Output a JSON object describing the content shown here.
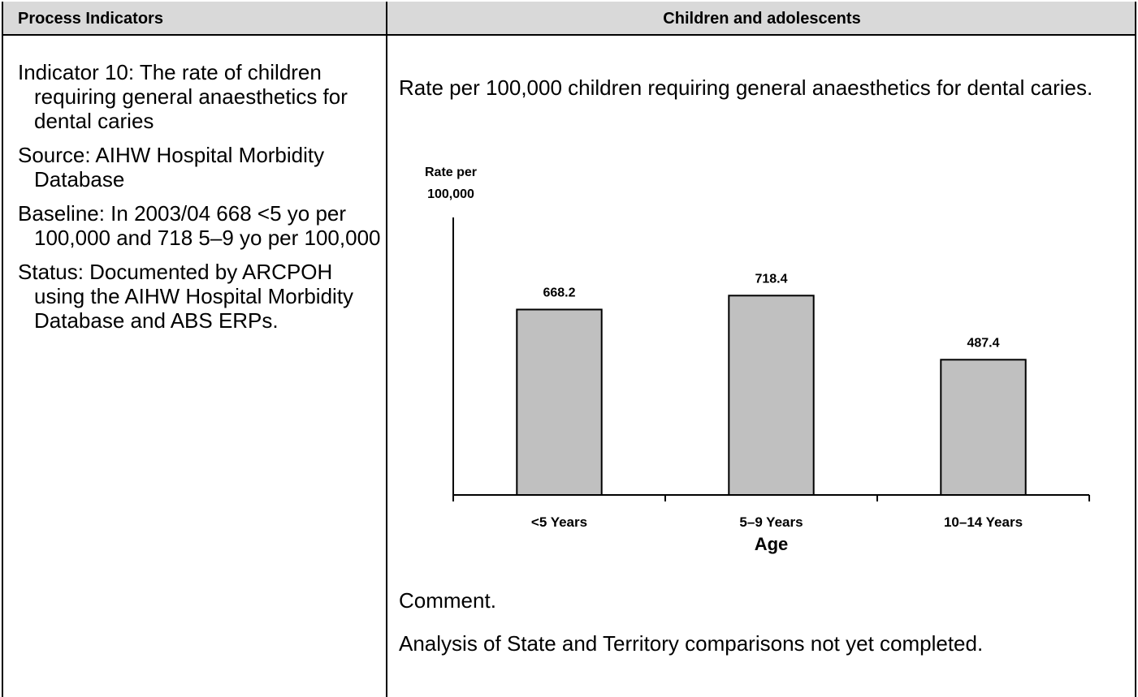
{
  "table": {
    "headers": [
      "Process Indicators",
      "Children and adolescents"
    ],
    "left": [
      "Indicator 10: The rate of children requiring general anaesthetics for dental caries",
      "Source: AIHW Hospital Morbidity Database",
      "Baseline: In 2003/04 668 <5 yo per 100,000 and 718 5–9 yo per 100,000",
      "Status: Documented by ARCPOH using the AIHW Hospital Morbidity Database and ABS ERPs."
    ],
    "right": {
      "intro": "Rate per 100,000 children requiring general anaesthetics for dental caries.",
      "comment": "Comment.",
      "note": "Analysis of State and Territory comparisons not yet completed."
    }
  },
  "chart_data": {
    "type": "bar",
    "ylabel": [
      "Rate per",
      "100,000"
    ],
    "xlabel": "Age",
    "categories": [
      "<5 Years",
      "5–9 Years",
      "10–14 Years"
    ],
    "values": [
      668.2,
      718.4,
      487.4
    ],
    "color": "#c0c0c0",
    "ylim": [
      0,
      1000
    ]
  }
}
